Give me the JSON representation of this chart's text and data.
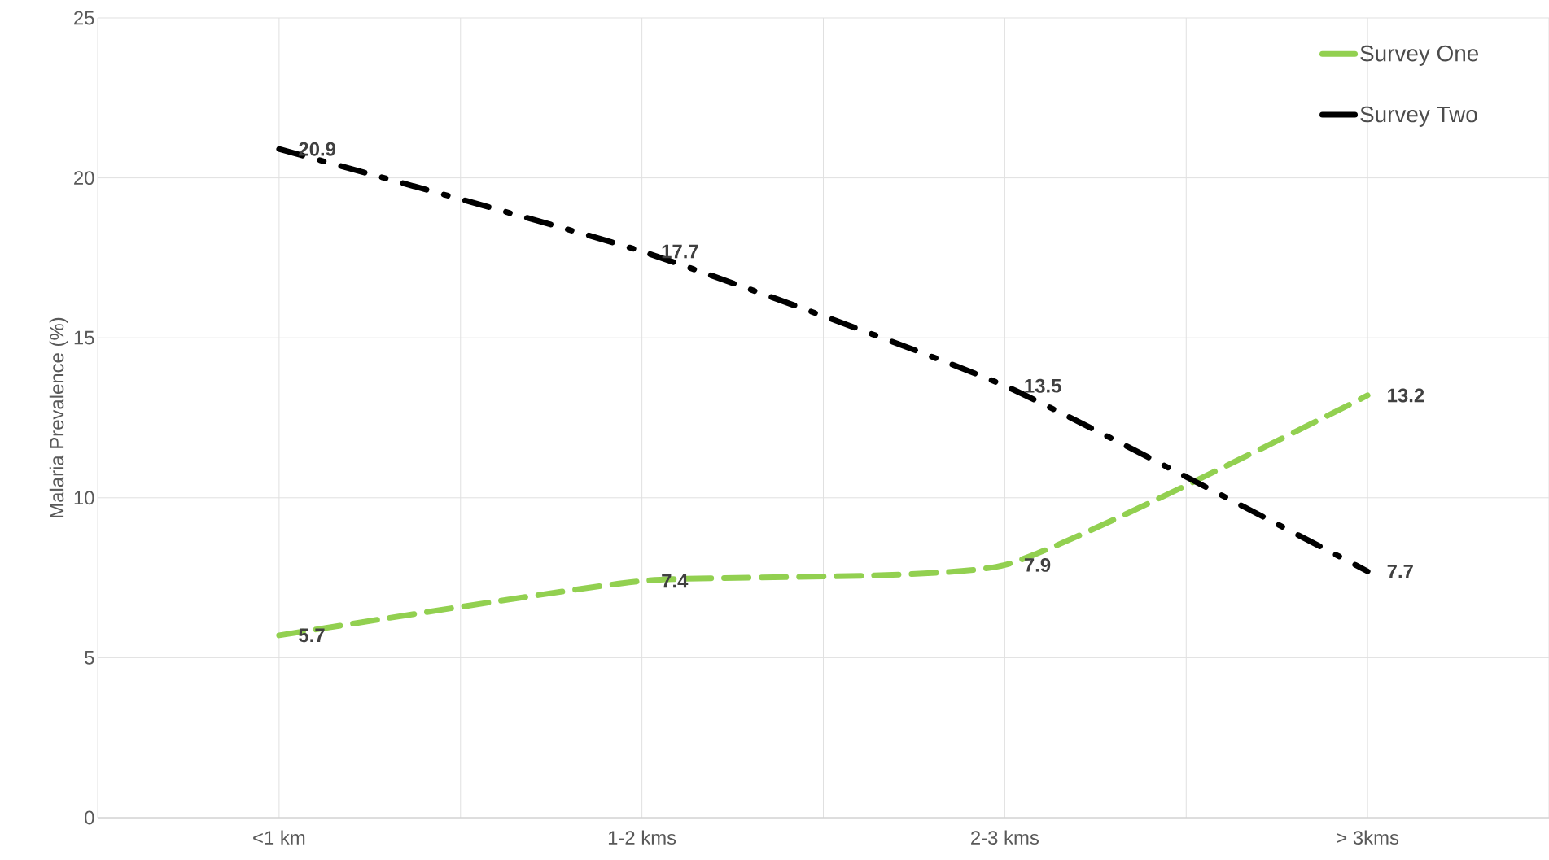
{
  "chart_data": {
    "type": "line",
    "ylabel": "Malaria Prevalence (%)",
    "categories": [
      "<1 km",
      "1-2 kms",
      "2-3 kms",
      "> 3kms"
    ],
    "series": [
      {
        "name": "Survey One",
        "color": "#92d050",
        "line_style": "dashed",
        "values": [
          5.7,
          7.4,
          7.9,
          13.2
        ]
      },
      {
        "name": "Survey Two",
        "color": "#000000",
        "line_style": "dashdot",
        "values": [
          20.9,
          17.7,
          13.5,
          7.7
        ]
      }
    ],
    "ylim": [
      0,
      25
    ],
    "yticks": [
      0,
      5,
      10,
      15,
      20,
      25
    ],
    "grid": true,
    "legend": "top right",
    "data_labels": true,
    "marker": "none"
  }
}
